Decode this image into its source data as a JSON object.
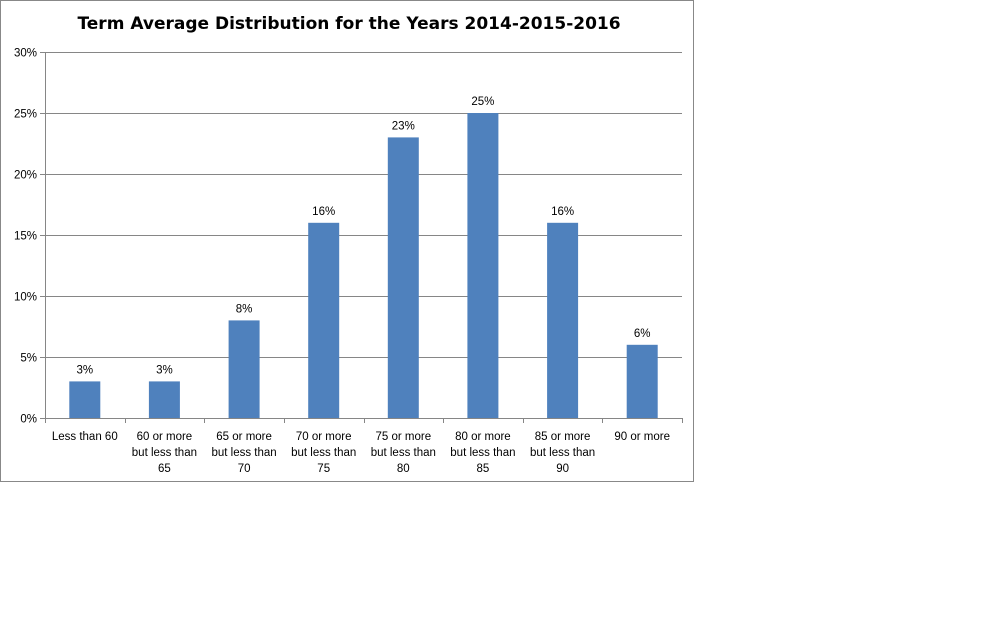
{
  "chart_data": {
    "type": "bar",
    "title": "Term Average Distribution for the Years 2014-2015-2016",
    "xlabel": "",
    "ylabel": "",
    "categories": [
      [
        "Less than 60"
      ],
      [
        "60 or more",
        "but less than",
        "65"
      ],
      [
        "65 or more",
        "but less than",
        "70"
      ],
      [
        "70 or more",
        "but less than",
        "75"
      ],
      [
        "75 or more",
        "but less than",
        "80"
      ],
      [
        "80 or more",
        "but less than",
        "85"
      ],
      [
        "85 or more",
        "but less than",
        "90"
      ],
      [
        "90 or more"
      ]
    ],
    "values": [
      3,
      3,
      8,
      16,
      23,
      25,
      16,
      6
    ],
    "data_labels": [
      "3%",
      "3%",
      "8%",
      "16%",
      "23%",
      "25%",
      "16%",
      "6%"
    ],
    "ylim": [
      0,
      30
    ],
    "yticks": [
      0,
      5,
      10,
      15,
      20,
      25,
      30
    ],
    "ytick_labels": [
      "0%",
      "5%",
      "10%",
      "15%",
      "20%",
      "25%",
      "30%"
    ],
    "grid": true,
    "legend": "none",
    "colors": {
      "bar": "#4f81bd",
      "grid": "#868686",
      "axis": "#868686"
    }
  }
}
